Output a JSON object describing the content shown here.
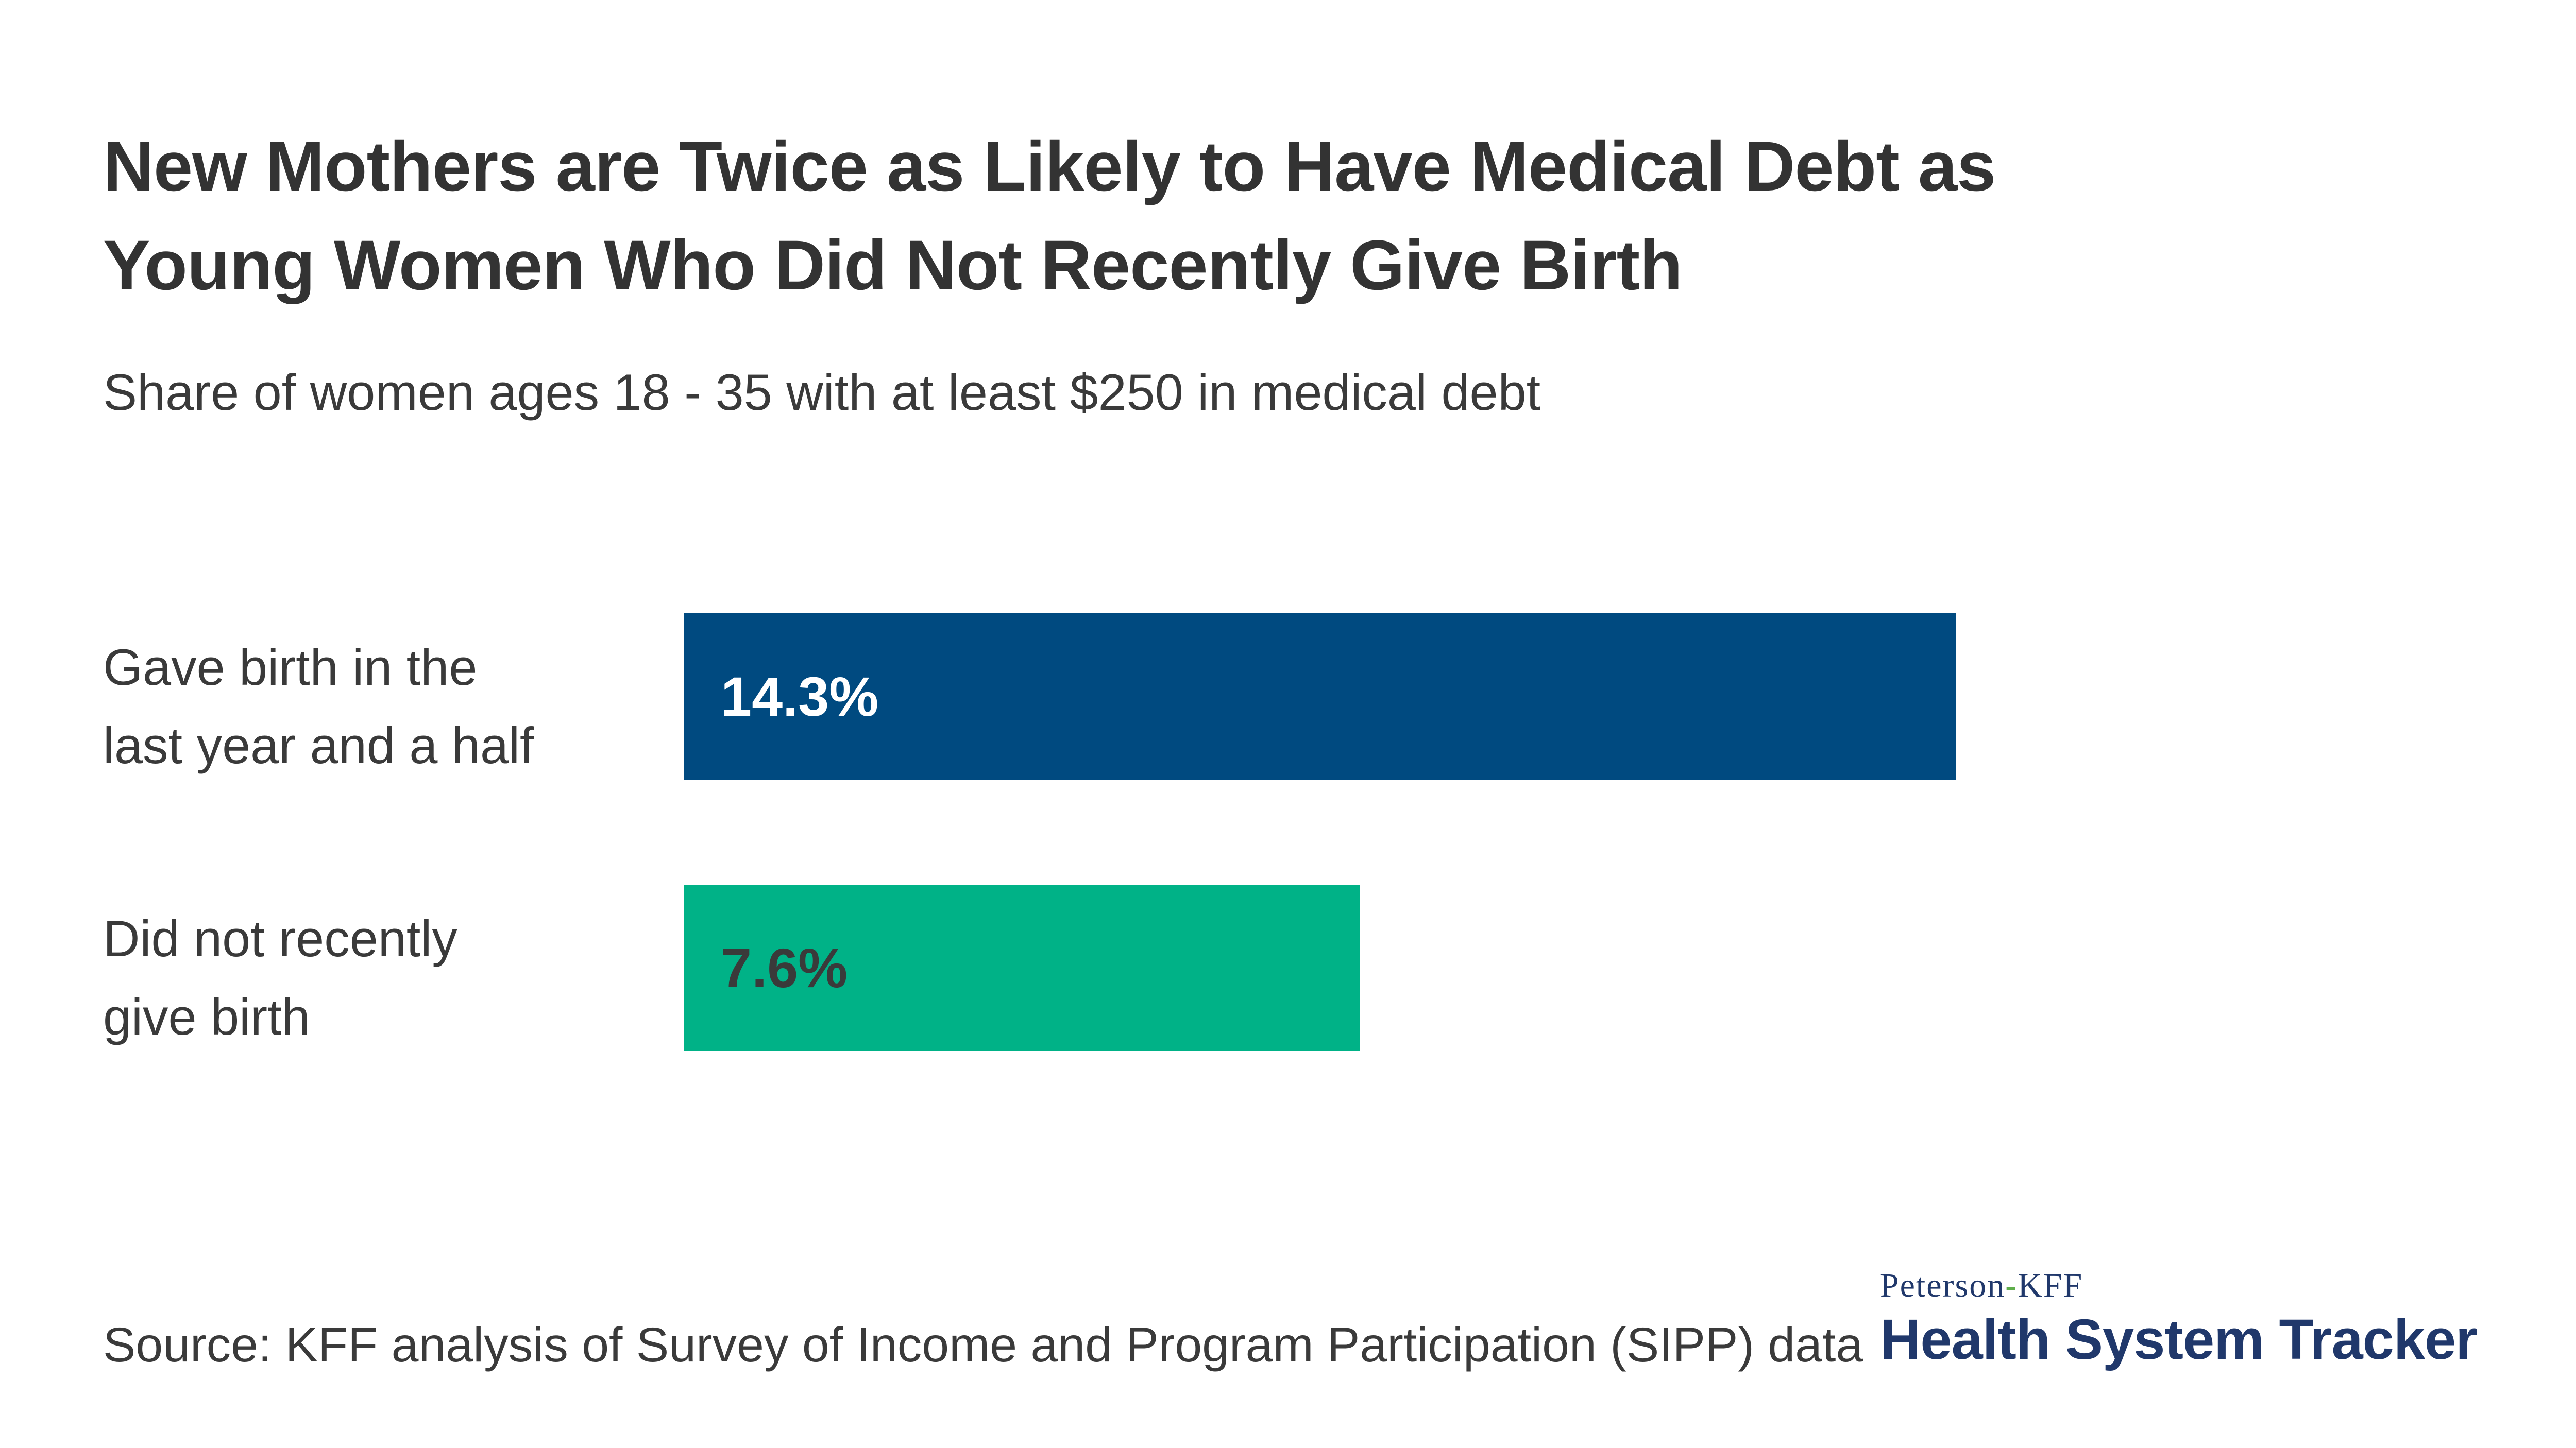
{
  "page": {
    "background": "#ffffff"
  },
  "header": {
    "title_lines": [
      "New Mothers are Twice as Likely to Have Medical Debt as",
      "Young Women Who Did Not Recently Give Birth"
    ],
    "subtitle": "Share of women ages 18 - 35 with at least $250 in medical debt"
  },
  "chart_data": {
    "type": "bar",
    "orientation": "horizontal",
    "title": "New Mothers are Twice as Likely to Have Medical Debt as Young Women Who Did Not Recently Give Birth",
    "subtitle": "Share of women ages 18 - 35 with at least $250 in medical debt",
    "categories": [
      "Gave birth in the last year and a half",
      "Did not recently give birth"
    ],
    "category_lines": [
      [
        "Gave birth in the",
        "last year and a half"
      ],
      [
        "Did not recently",
        "give birth"
      ]
    ],
    "values": [
      14.3,
      7.6
    ],
    "value_labels": [
      "14.3%",
      "7.6%"
    ],
    "bar_colors": [
      "#004A80",
      "#00B287"
    ],
    "value_label_colors": [
      "#FFFFFF",
      "#3A3A3A"
    ],
    "xlim": [
      0,
      14.3
    ],
    "axes_visible": false,
    "grid": false,
    "legend": false
  },
  "footer": {
    "source": "Source: KFF analysis of Survey of Income and Program Participation (SIPP) data",
    "logo": {
      "line1_pre": "Peterson",
      "line1_hyphen": "-",
      "line1_post": "KFF",
      "line2": "Health System Tracker"
    }
  },
  "colors": {
    "title_text": "#333333",
    "body_text": "#3A3A3A",
    "bar_navy": "#004A80",
    "bar_green": "#00B287",
    "logo_navy": "#20386B",
    "logo_hyphen_green": "#5FAE4B"
  }
}
